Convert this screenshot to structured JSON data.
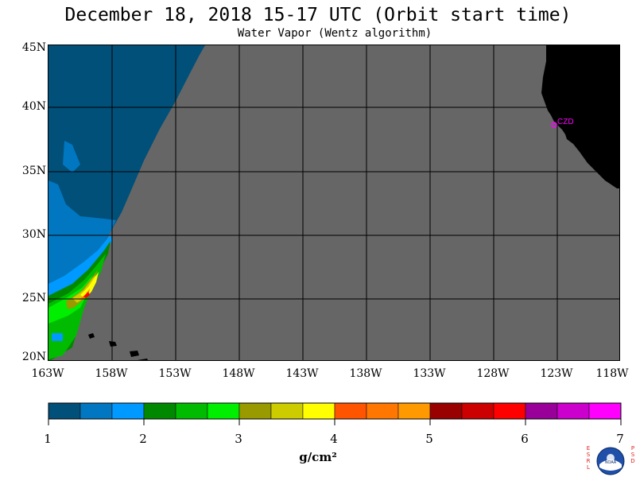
{
  "header": {
    "title": "December 18, 2018  15-17 UTC  (Orbit start time)",
    "subtitle": "Water Vapor (Wentz algorithm)"
  },
  "map": {
    "latitude_labels": [
      "45N",
      "40N",
      "35N",
      "30N",
      "25N",
      "20N"
    ],
    "longitude_labels": [
      "163W",
      "158W",
      "153W",
      "148W",
      "143W",
      "138W",
      "133W",
      "128W",
      "123W",
      "118W"
    ],
    "station_label": "CZD",
    "colors": {
      "no_data": "#666666",
      "land": "#000000",
      "station": "#ff00ff"
    }
  },
  "colorbar": {
    "tick_labels": [
      "1",
      "2",
      "3",
      "4",
      "5",
      "6",
      "7"
    ],
    "units": "g/cm²",
    "colors": [
      "#00507a",
      "#0077c0",
      "#0099ff",
      "#008800",
      "#00bb00",
      "#00ee00",
      "#999900",
      "#cccc00",
      "#ffff00",
      "#ff5500",
      "#ff7700",
      "#ff9900",
      "#990000",
      "#cc0000",
      "#ff0000",
      "#990099",
      "#cc00cc",
      "#ff00ff"
    ]
  },
  "logo": {
    "left_letters": [
      "E",
      "S",
      "R",
      "L"
    ],
    "right_letters": [
      "P",
      "S",
      "D"
    ],
    "text": "NOAA"
  }
}
